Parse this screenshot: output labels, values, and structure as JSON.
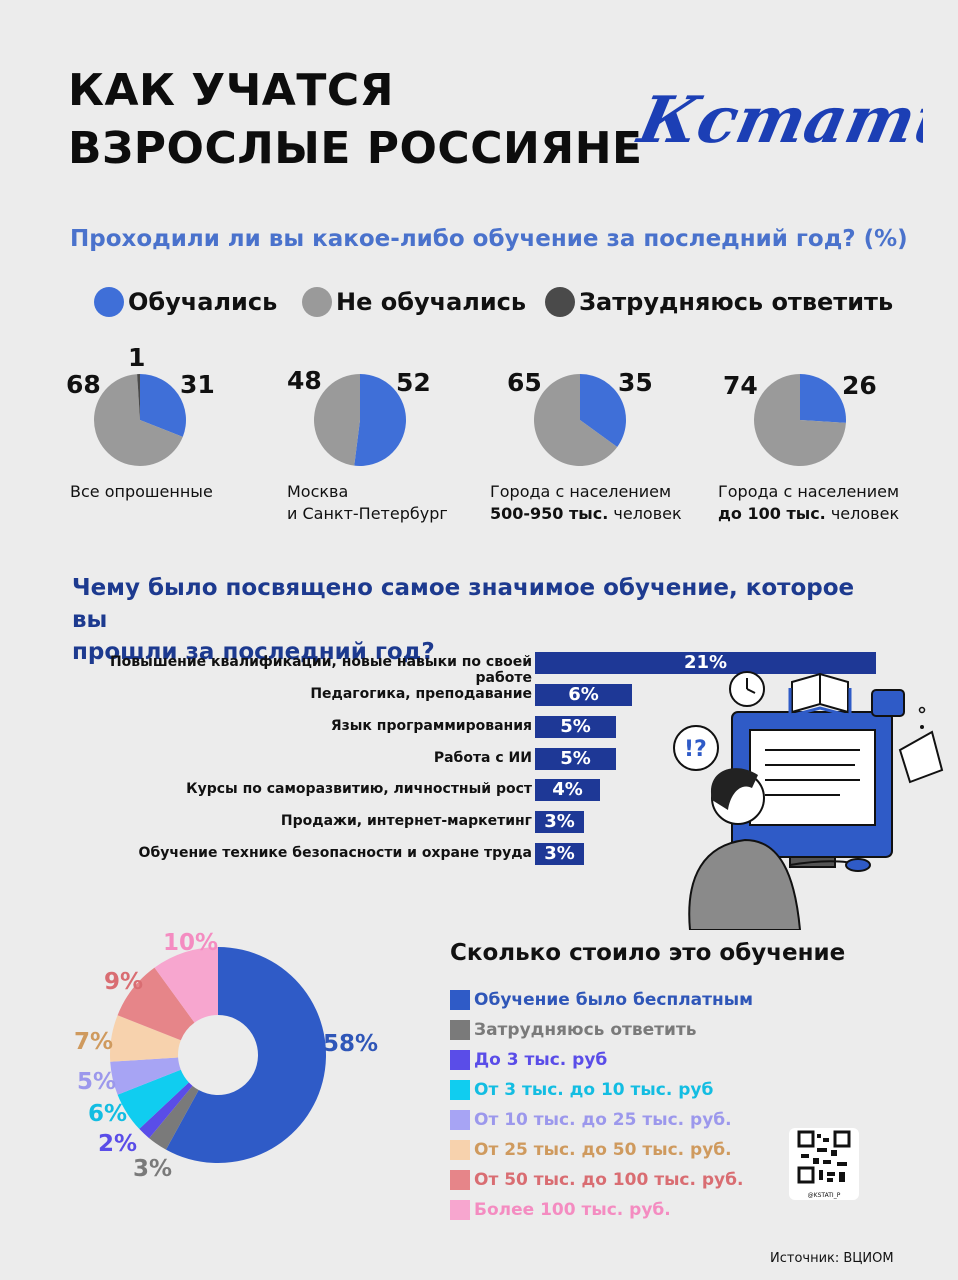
{
  "title_line1": "КАК УЧАТСЯ",
  "title_line2": "ВЗРОСЛЫЕ РОССИЯНЕ",
  "logo_text": "Кстати,",
  "section1_question": "Проходили ли вы какое-либо обучение за последний год? (%)",
  "legend": [
    {
      "label": "Обучались",
      "color": "#3f6fd8"
    },
    {
      "label": "Не обучались",
      "color": "#9a9a9a"
    },
    {
      "label": "Затрудняюсь ответить",
      "color": "#4a4a4a"
    }
  ],
  "pies": [
    {
      "studied": 31,
      "not": 68,
      "unsure": 1,
      "caption1": "Все опрошенные",
      "caption2": "",
      "caption2_bold": "",
      "caption2_rest": ""
    },
    {
      "studied": 52,
      "not": 48,
      "caption1": "Москва",
      "caption2": "и Санкт-Петербург",
      "caption2_bold": "",
      "caption2_rest": ""
    },
    {
      "studied": 35,
      "not": 65,
      "caption1": "Города с населением",
      "caption2": "",
      "caption2_bold": "500-950 тыс.",
      "caption2_rest": " человек"
    },
    {
      "studied": 26,
      "not": 74,
      "caption1": "Города с населением",
      "caption2": "",
      "caption2_bold": "до 100 тыс.",
      "caption2_rest": " человек"
    }
  ],
  "section2_question_line1": "Чему было посвящено самое значимое обучение, которое вы",
  "section2_question_line2": "прошли за последний год?",
  "section3_title": "Сколько стоило это обучение",
  "source": "Источник: ВЦИОМ",
  "qr_caption": "@KSTATI_P",
  "chart_data": [
    {
      "type": "pie",
      "title": "Проходили ли вы какое-либо обучение за последний год? (%)",
      "series_names": [
        "Обучались",
        "Не обучались",
        "Затрудняюсь ответить"
      ],
      "groups": [
        "Все опрошенные",
        "Москва и Санкт-Петербург",
        "Города с населением 500-950 тыс. человек",
        "Города с населением до 100 тыс. человек"
      ],
      "values": [
        [
          31,
          68,
          1
        ],
        [
          52,
          48,
          0
        ],
        [
          35,
          65,
          0
        ],
        [
          26,
          74,
          0
        ]
      ]
    },
    {
      "type": "bar",
      "title": "Чему было посвящено самое значимое обучение, которое вы прошли за последний год?",
      "categories": [
        "Повышение квалификации, новые навыки по своей работе",
        "Педагогика, преподавание",
        "Язык программирования",
        "Работа с ИИ",
        "Курсы по саморазвитию, личностный рост",
        "Продажи, интернет-маркетинг",
        "Обучение технике безопасности и охране труда"
      ],
      "values": [
        21,
        6,
        5,
        5,
        4,
        3,
        3
      ],
      "value_labels": [
        "21%",
        "6%",
        "5%",
        "5%",
        "4%",
        "3%",
        "3%"
      ]
    },
    {
      "type": "pie",
      "title": "Сколько стоило это обучение",
      "categories": [
        "Обучение было бесплатным",
        "Затрудняюсь ответить",
        "До 3 тыс. руб",
        "От 3 тыс. до 10 тыс. руб",
        "От 10 тыс. до 25 тыс. руб.",
        "От 25 тыс. до 50 тыс. руб.",
        "От 50 тыс. до 100 тыс. руб.",
        "Более 100 тыс. руб."
      ],
      "values": [
        58,
        3,
        2,
        6,
        5,
        7,
        9,
        10
      ],
      "value_labels": [
        "58%",
        "3%",
        "2%",
        "6%",
        "5%",
        "7%",
        "9%",
        "10%"
      ],
      "colors": [
        "#2f5bc7",
        "#7a7a7a",
        "#5a4de8",
        "#10cdf0",
        "#a7a4f4",
        "#f7d2ad",
        "#e68589",
        "#f7a6cf"
      ],
      "label_colors": [
        "#2f56b8",
        "#7a7a7a",
        "#5a4de8",
        "#13bde2",
        "#9c98ec",
        "#cf9a5e",
        "#d96d72",
        "#f48cc1"
      ]
    }
  ]
}
